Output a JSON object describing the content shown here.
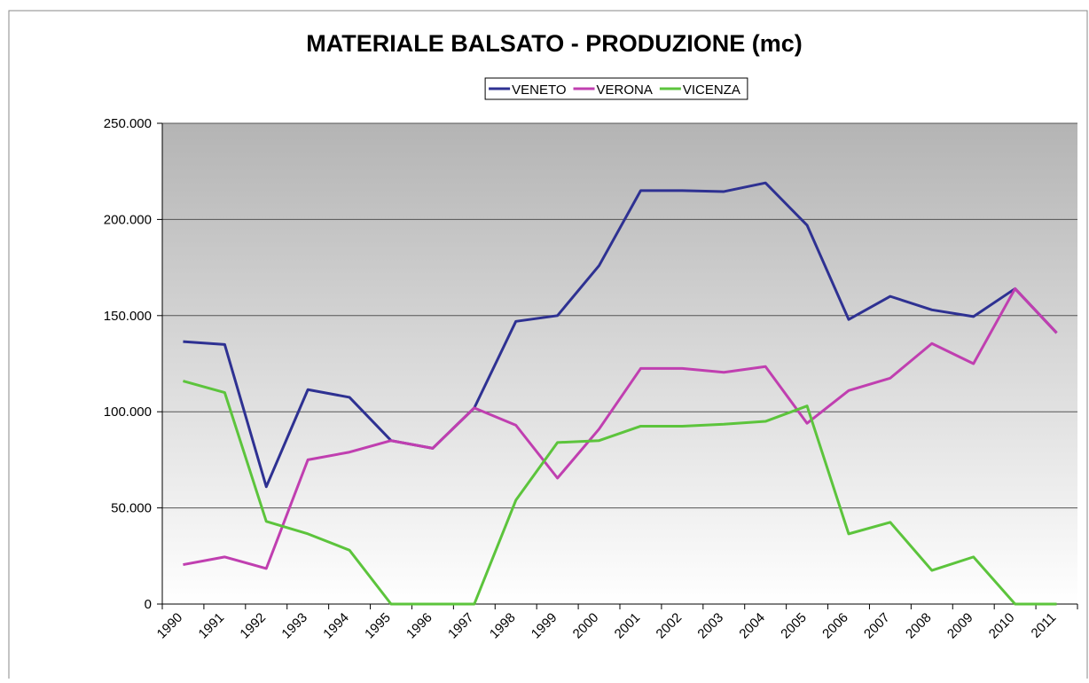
{
  "chart_data": {
    "type": "line",
    "title": "MATERIALE BALSATO - PRODUZIONE (mc)",
    "categories": [
      "1990",
      "1991",
      "1992",
      "1993",
      "1994",
      "1995",
      "1996",
      "1997",
      "1998",
      "1999",
      "2000",
      "2001",
      "2002",
      "2003",
      "2004",
      "2005",
      "2006",
      "2007",
      "2008",
      "2009",
      "2010",
      "2011"
    ],
    "series": [
      {
        "name": "VENETO",
        "color": "#2e3192",
        "values": [
          136500,
          135000,
          61000,
          111500,
          107500,
          85000,
          81000,
          102000,
          147000,
          150000,
          176000,
          215000,
          215000,
          214500,
          219000,
          197000,
          148000,
          160000,
          153000,
          149500,
          164000,
          141000
        ]
      },
      {
        "name": "VERONA",
        "color": "#c03fb0",
        "values": [
          20500,
          24500,
          18500,
          75000,
          79000,
          85000,
          81000,
          102000,
          93000,
          65500,
          91000,
          122500,
          122500,
          120500,
          123500,
          94000,
          111000,
          117500,
          135500,
          125000,
          164000,
          141000
        ]
      },
      {
        "name": "VICENZA",
        "color": "#5cc43c",
        "values": [
          116000,
          110000,
          43000,
          36500,
          28000,
          0,
          0,
          0,
          54000,
          84000,
          85000,
          92500,
          92500,
          93500,
          95000,
          103000,
          36500,
          42500,
          17500,
          24500,
          0,
          0
        ]
      }
    ],
    "ylim": [
      0,
      250000
    ],
    "yticks": [
      0,
      {
        "value": 50000,
        "label": "50.000"
      },
      {
        "value": 100000,
        "label": "100.000"
      },
      {
        "value": 150000,
        "label": "150.000"
      },
      {
        "value": 200000,
        "label": "200.000"
      },
      {
        "value": 250000,
        "label": "250.000"
      }
    ],
    "grid": true,
    "legend": "top"
  }
}
